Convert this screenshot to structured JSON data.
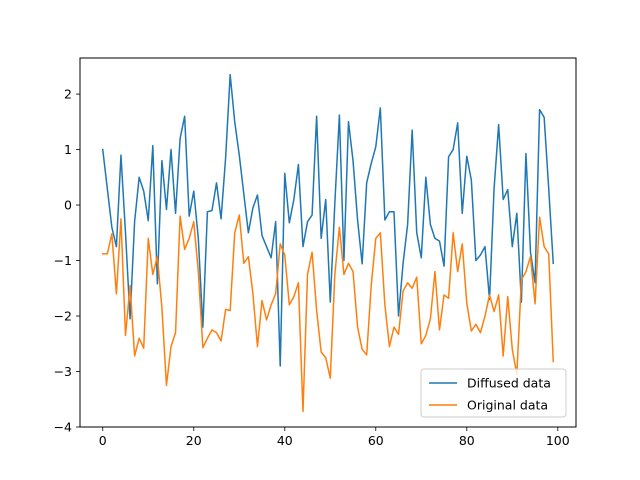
{
  "chart_data": {
    "type": "line",
    "title": "",
    "xlabel": "",
    "ylabel": "",
    "xlim": [
      -5,
      104
    ],
    "ylim": [
      -4.0,
      2.65
    ],
    "xticks": [
      0,
      20,
      40,
      60,
      80,
      100
    ],
    "yticks": [
      2,
      1,
      0,
      -1,
      -2,
      -3,
      -4
    ],
    "grid": false,
    "legend_position": "lower-right",
    "series": [
      {
        "name": "Diffused data",
        "color": "#1f77b4",
        "values": [
          1.0,
          0.3,
          -0.4,
          -0.75,
          0.9,
          -0.5,
          -2.05,
          -0.3,
          0.5,
          0.25,
          -0.28,
          1.07,
          -1.42,
          0.8,
          -0.08,
          1.0,
          -0.15,
          1.2,
          1.6,
          -0.2,
          0.25,
          -0.6,
          -2.2,
          -0.12,
          -0.1,
          0.4,
          -0.25,
          0.85,
          2.35,
          1.5,
          0.9,
          0.2,
          -0.5,
          -0.05,
          0.18,
          -0.55,
          -0.75,
          -0.95,
          -0.3,
          -2.9,
          0.57,
          -0.32,
          0.1,
          0.73,
          -0.75,
          -0.3,
          -0.18,
          1.6,
          -0.6,
          0.1,
          -1.75,
          0.03,
          1.62,
          -1.0,
          1.5,
          0.8,
          -0.27,
          -1.06,
          0.4,
          0.75,
          1.05,
          1.75,
          -0.27,
          -0.12,
          -0.12,
          -2.0,
          -1.05,
          -0.35,
          1.35,
          -0.5,
          -0.95,
          0.5,
          -0.35,
          -0.6,
          -0.65,
          -1.1,
          0.87,
          1.0,
          1.48,
          -0.15,
          0.88,
          0.45,
          -1.0,
          -0.9,
          -0.75,
          -1.7,
          0.3,
          1.45,
          0.1,
          0.28,
          -0.75,
          -0.15,
          -1.75,
          0.93,
          -0.85,
          -1.4,
          1.72,
          1.58,
          0.3,
          -1.05
        ]
      },
      {
        "name": "Original data",
        "color": "#ff7f0e",
        "values": [
          -0.88,
          -0.88,
          -0.52,
          -1.6,
          -0.25,
          -2.35,
          -1.45,
          -2.72,
          -2.4,
          -2.58,
          -0.6,
          -1.25,
          -0.93,
          -1.85,
          -3.25,
          -2.55,
          -2.3,
          -0.2,
          -0.8,
          -0.6,
          -0.3,
          -1.2,
          -2.57,
          -2.4,
          -2.25,
          -2.3,
          -2.45,
          -1.88,
          -1.9,
          -0.5,
          -0.18,
          -1.05,
          -0.93,
          -1.6,
          -2.55,
          -1.72,
          -2.07,
          -1.8,
          -1.6,
          -0.7,
          -0.9,
          -1.8,
          -1.65,
          -1.4,
          -3.72,
          -1.25,
          -0.85,
          -1.9,
          -2.65,
          -2.75,
          -3.12,
          -1.25,
          -0.4,
          -1.25,
          -1.05,
          -1.2,
          -2.2,
          -2.6,
          -2.7,
          -1.45,
          -0.6,
          -0.5,
          -1.8,
          -2.55,
          -2.2,
          -2.33,
          -1.55,
          -1.4,
          -1.5,
          -1.3,
          -2.5,
          -2.35,
          -2.05,
          -1.2,
          -2.25,
          -1.62,
          -1.68,
          -0.5,
          -1.2,
          -0.7,
          -1.77,
          -2.27,
          -2.15,
          -2.3,
          -2.0,
          -1.62,
          -1.92,
          -1.62,
          -2.72,
          -1.65,
          -2.6,
          -3.05,
          -1.35,
          -1.2,
          -0.93,
          -1.78,
          -0.22,
          -0.75,
          -0.88,
          -2.82
        ]
      }
    ]
  }
}
